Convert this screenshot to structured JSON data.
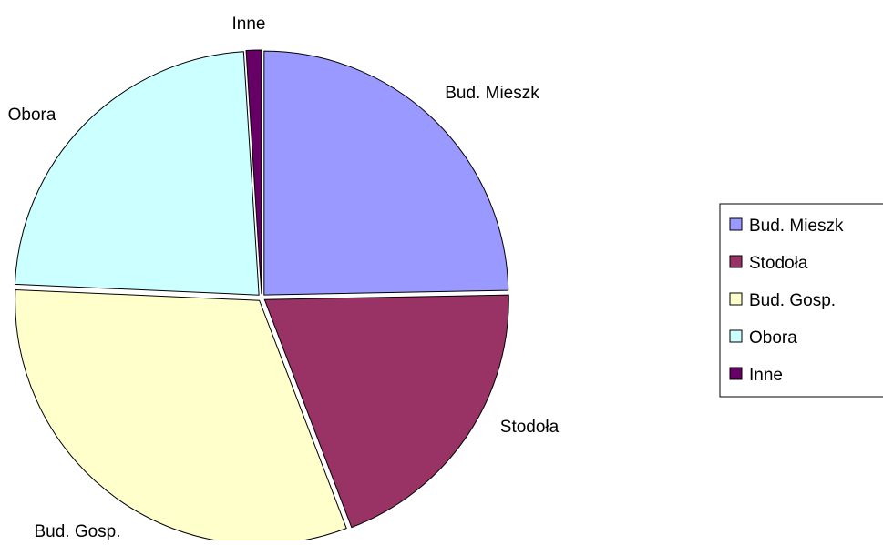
{
  "chart_data": {
    "type": "pie",
    "title": "",
    "categories": [
      "Bud. Mieszk",
      "Stodoła",
      "Bud. Gosp.",
      "Obora",
      "Inne"
    ],
    "values": [
      24.7,
      19.5,
      31.5,
      23.3,
      1.0
    ],
    "colors": [
      "#9999ff",
      "#993366",
      "#ffffcc",
      "#ccffff",
      "#660066"
    ],
    "exploded": true,
    "start_angle_deg": 0,
    "direction": "clockwise",
    "legend_position": "right",
    "data_labels": "category"
  },
  "legend": {
    "items": [
      {
        "label": "Bud. Mieszk",
        "color": "#9999ff"
      },
      {
        "label": "Stodoła",
        "color": "#993366"
      },
      {
        "label": "Bud. Gosp.",
        "color": "#ffffcc"
      },
      {
        "label": "Obora",
        "color": "#ccffff"
      },
      {
        "label": "Inne",
        "color": "#660066"
      }
    ]
  }
}
